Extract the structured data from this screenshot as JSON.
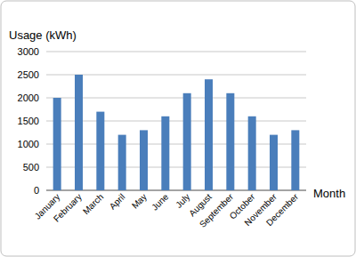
{
  "chart_data": {
    "type": "bar",
    "y_label": "Usage (kWh)",
    "x_label": "Month",
    "categories": [
      "January",
      "February",
      "March",
      "April",
      "May",
      "June",
      "July",
      "August",
      "September",
      "October",
      "November",
      "December"
    ],
    "values": [
      2000,
      2500,
      1700,
      1200,
      1300,
      1600,
      2100,
      2400,
      2100,
      1600,
      1200,
      1300
    ],
    "color": "#4a7ebb",
    "ylim": [
      0,
      3000
    ],
    "yticks": [
      0,
      500,
      1000,
      1500,
      2000,
      2500,
      3000
    ],
    "grid": true
  }
}
